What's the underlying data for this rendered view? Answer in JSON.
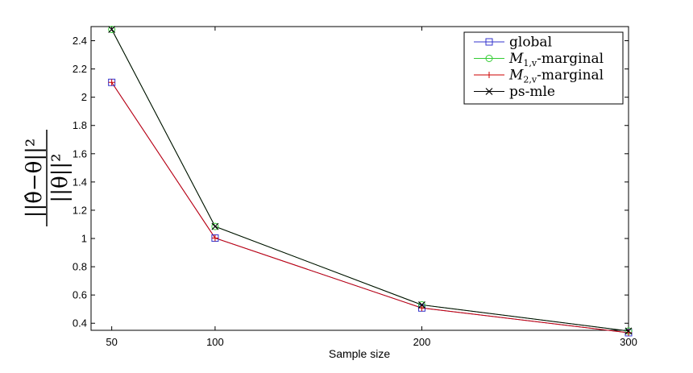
{
  "chart_data": {
    "type": "line",
    "title": "",
    "xlabel": "Sample size",
    "ylabel": "||θ̂−θ||² / ||θ||²",
    "ylabel_numerator": "||θ̂−θ||²",
    "ylabel_denominator": "||θ||²",
    "x": [
      50,
      100,
      200,
      300
    ],
    "xlim": [
      40,
      300
    ],
    "ylim": [
      0.35,
      2.5
    ],
    "xticks": [
      "50",
      "100",
      "200",
      "300"
    ],
    "yticks": [
      "0.4",
      "0.6",
      "0.8",
      "1",
      "1.2",
      "1.4",
      "1.6",
      "1.8",
      "2",
      "2.2",
      "2.4"
    ],
    "grid": false,
    "legend_position": "top-right",
    "series": [
      {
        "name": "global",
        "values": [
          2.105,
          1.003,
          0.508,
          0.333
        ],
        "color": "#3333cc",
        "marker": "square"
      },
      {
        "name": "M1,v-marginal",
        "legend_main": "M",
        "legend_sub": "1,v",
        "legend_tail": "-marginal",
        "values": [
          2.48,
          1.085,
          0.53,
          0.345
        ],
        "color": "#33cc33",
        "marker": "circle"
      },
      {
        "name": "M2,v-marginal",
        "legend_main": "M",
        "legend_sub": "2,v",
        "legend_tail": "-marginal",
        "values": [
          2.105,
          1.003,
          0.508,
          0.333
        ],
        "color": "#cc0000",
        "marker": "plus"
      },
      {
        "name": "ps-mle",
        "values": [
          2.48,
          1.085,
          0.53,
          0.345
        ],
        "color": "#000000",
        "marker": "x"
      }
    ]
  }
}
